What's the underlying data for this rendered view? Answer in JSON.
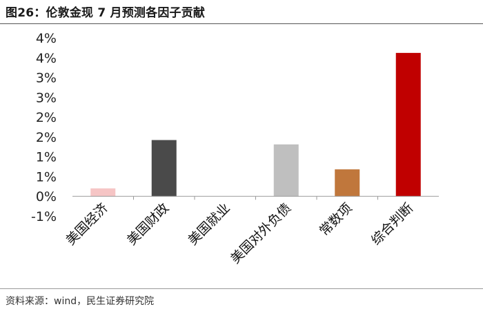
{
  "title": "图26：伦敦金现 7 月预测各因子贡献",
  "source": "资料来源：wind，民生证券研究院",
  "chart_data": {
    "type": "bar",
    "categories": [
      "美国经济",
      "美国财政",
      "美国就业",
      "美国对外负债",
      "常数项",
      "综合判断"
    ],
    "values": [
      0.2,
      1.42,
      0.0,
      1.31,
      0.68,
      3.62
    ],
    "colors": [
      "#F6C5C5",
      "#4A4A4A",
      "#FFFFFF",
      "#BFBFBF",
      "#C0773C",
      "#C00000"
    ],
    "ytick_labels": [
      "-1%",
      "0%",
      "1%",
      "1%",
      "2%",
      "2%",
      "3%",
      "3%",
      "4%",
      "4%"
    ],
    "ylim": [
      -0.5,
      4.0
    ],
    "unit": "%"
  }
}
